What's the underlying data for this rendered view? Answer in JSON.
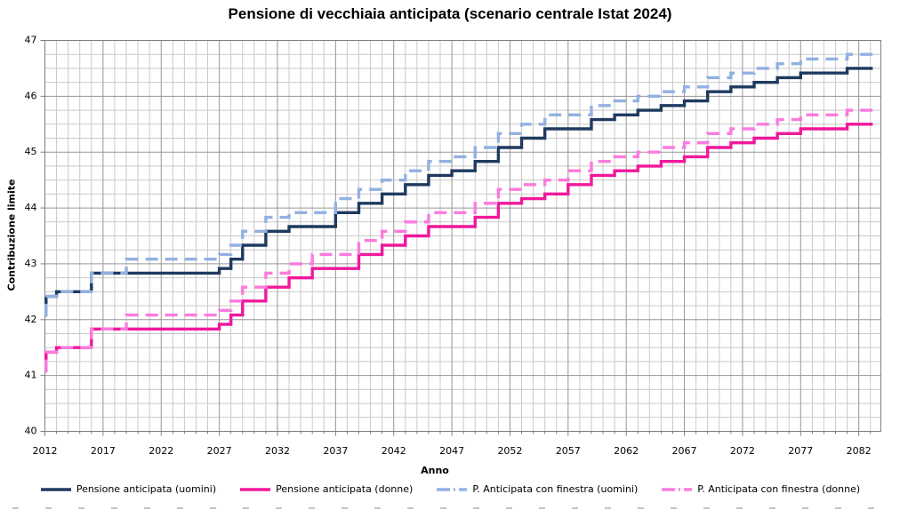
{
  "title": "Pensione di vecchiaia anticipata (scenario centrale Istat 2024)",
  "colors": {
    "background": "#ffffff",
    "grid_minor": "#c9c9c9",
    "grid_major": "#969696",
    "axis": "#7f7f7f",
    "text": "#000000",
    "series_uomini": "#1f3a5f",
    "series_donne": "#f0189c",
    "series_finestra_uomini": "#92b1e0",
    "series_finestra_donne": "#fb7bdd"
  },
  "chart_data": {
    "type": "line",
    "subtype": "step",
    "title": "Pensione di vecchiaia anticipata (scenario centrale Istat 2024)",
    "xlabel": "Anno",
    "ylabel": "Contribuzione limite",
    "xlim": [
      2012,
      2083.9
    ],
    "ylim": [
      40,
      47
    ],
    "x_ticks": [
      2012,
      2017,
      2022,
      2027,
      2032,
      2037,
      2042,
      2047,
      2052,
      2057,
      2062,
      2067,
      2072,
      2077,
      2082
    ],
    "y_ticks": [
      40,
      41,
      42,
      43,
      44,
      45,
      46,
      47
    ],
    "x_minor_step": 1,
    "y_minor_step": 0.25,
    "grid": "both",
    "legend_position": "bottom",
    "series": [
      {
        "name": "Pensione anticipata (uomini)",
        "color": "#1f3a5f",
        "style": "solid",
        "points": [
          [
            2012,
            42.083
          ],
          [
            2012.1,
            42.417
          ],
          [
            2013,
            42.5
          ],
          [
            2016,
            42.833
          ],
          [
            2027,
            42.917
          ],
          [
            2028,
            43.083
          ],
          [
            2029,
            43.333
          ],
          [
            2031,
            43.583
          ],
          [
            2033,
            43.667
          ],
          [
            2037,
            43.917
          ],
          [
            2039,
            44.083
          ],
          [
            2041,
            44.25
          ],
          [
            2043,
            44.417
          ],
          [
            2045,
            44.583
          ],
          [
            2047,
            44.667
          ],
          [
            2049,
            44.833
          ],
          [
            2051,
            45.083
          ],
          [
            2053,
            45.25
          ],
          [
            2055,
            45.417
          ],
          [
            2059,
            45.583
          ],
          [
            2061,
            45.667
          ],
          [
            2063,
            45.75
          ],
          [
            2065,
            45.833
          ],
          [
            2067,
            45.917
          ],
          [
            2069,
            46.083
          ],
          [
            2071,
            46.167
          ],
          [
            2073,
            46.25
          ],
          [
            2075,
            46.333
          ],
          [
            2077,
            46.417
          ],
          [
            2081,
            46.5
          ],
          [
            2083.2,
            46.5
          ]
        ]
      },
      {
        "name": "Pensione anticipata (donne)",
        "color": "#f0189c",
        "style": "solid",
        "points": [
          [
            2012,
            41.083
          ],
          [
            2012.1,
            41.417
          ],
          [
            2013,
            41.5
          ],
          [
            2016,
            41.833
          ],
          [
            2027,
            41.917
          ],
          [
            2028,
            42.083
          ],
          [
            2029,
            42.333
          ],
          [
            2031,
            42.583
          ],
          [
            2033,
            42.75
          ],
          [
            2035,
            42.917
          ],
          [
            2039,
            43.167
          ],
          [
            2041,
            43.333
          ],
          [
            2043,
            43.5
          ],
          [
            2045,
            43.667
          ],
          [
            2049,
            43.833
          ],
          [
            2051,
            44.083
          ],
          [
            2053,
            44.167
          ],
          [
            2055,
            44.25
          ],
          [
            2057,
            44.417
          ],
          [
            2059,
            44.583
          ],
          [
            2061,
            44.667
          ],
          [
            2063,
            44.75
          ],
          [
            2065,
            44.833
          ],
          [
            2067,
            44.917
          ],
          [
            2069,
            45.083
          ],
          [
            2071,
            45.167
          ],
          [
            2073,
            45.25
          ],
          [
            2075,
            45.333
          ],
          [
            2077,
            45.417
          ],
          [
            2081,
            45.5
          ],
          [
            2083.2,
            45.5
          ]
        ]
      },
      {
        "name": "P. Anticipata con finestra (uomini)",
        "color": "#92b1e0",
        "style": "dashed",
        "points": [
          [
            2012,
            42.083
          ],
          [
            2012.1,
            42.417
          ],
          [
            2013,
            42.5
          ],
          [
            2016,
            42.833
          ],
          [
            2019,
            43.083
          ],
          [
            2027,
            43.167
          ],
          [
            2028,
            43.333
          ],
          [
            2029,
            43.583
          ],
          [
            2031,
            43.833
          ],
          [
            2033,
            43.917
          ],
          [
            2037,
            44.167
          ],
          [
            2039,
            44.333
          ],
          [
            2041,
            44.5
          ],
          [
            2043,
            44.667
          ],
          [
            2045,
            44.833
          ],
          [
            2047,
            44.917
          ],
          [
            2049,
            45.083
          ],
          [
            2051,
            45.333
          ],
          [
            2053,
            45.5
          ],
          [
            2055,
            45.667
          ],
          [
            2059,
            45.833
          ],
          [
            2061,
            45.917
          ],
          [
            2063,
            46.0
          ],
          [
            2065,
            46.083
          ],
          [
            2067,
            46.167
          ],
          [
            2069,
            46.333
          ],
          [
            2071,
            46.417
          ],
          [
            2073,
            46.5
          ],
          [
            2075,
            46.583
          ],
          [
            2077,
            46.667
          ],
          [
            2081,
            46.75
          ],
          [
            2083.2,
            46.75
          ]
        ]
      },
      {
        "name": "P. Anticipata con finestra (donne)",
        "color": "#fb7bdd",
        "style": "dashed",
        "points": [
          [
            2012,
            41.083
          ],
          [
            2012.1,
            41.417
          ],
          [
            2013,
            41.5
          ],
          [
            2016,
            41.833
          ],
          [
            2019,
            42.083
          ],
          [
            2027,
            42.167
          ],
          [
            2028,
            42.333
          ],
          [
            2029,
            42.583
          ],
          [
            2031,
            42.833
          ],
          [
            2033,
            43.0
          ],
          [
            2035,
            43.167
          ],
          [
            2039,
            43.417
          ],
          [
            2041,
            43.583
          ],
          [
            2043,
            43.75
          ],
          [
            2045,
            43.917
          ],
          [
            2049,
            44.083
          ],
          [
            2051,
            44.333
          ],
          [
            2053,
            44.417
          ],
          [
            2055,
            44.5
          ],
          [
            2057,
            44.667
          ],
          [
            2059,
            44.833
          ],
          [
            2061,
            44.917
          ],
          [
            2063,
            45.0
          ],
          [
            2065,
            45.083
          ],
          [
            2067,
            45.167
          ],
          [
            2069,
            45.333
          ],
          [
            2071,
            45.417
          ],
          [
            2073,
            45.5
          ],
          [
            2075,
            45.583
          ],
          [
            2077,
            45.667
          ],
          [
            2081,
            45.75
          ],
          [
            2083.2,
            45.75
          ]
        ]
      }
    ]
  }
}
